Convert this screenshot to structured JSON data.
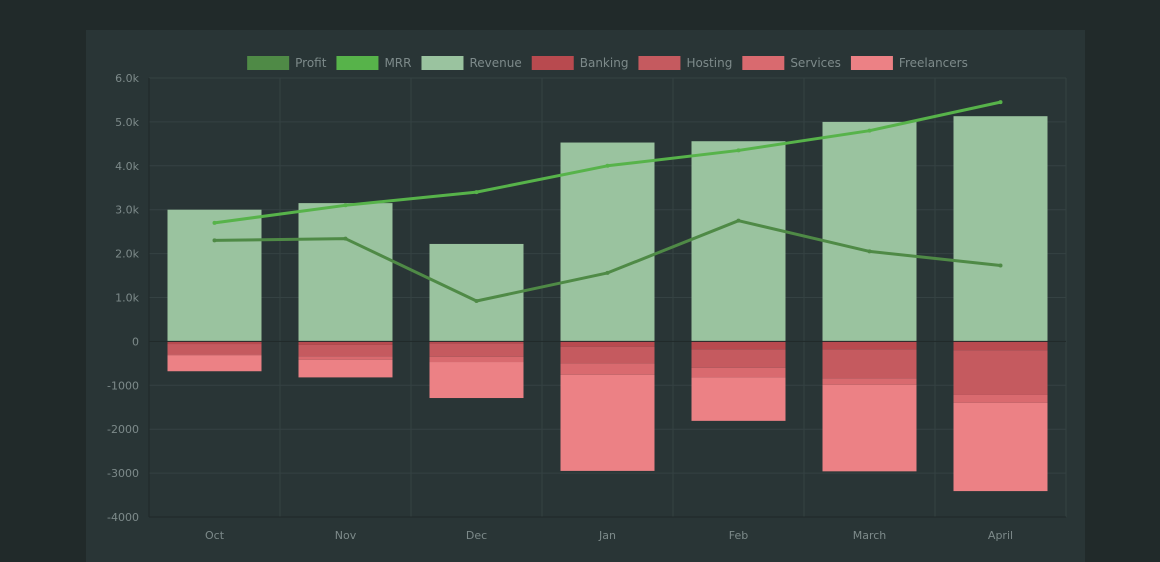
{
  "chart_data": {
    "type": "bar",
    "categories": [
      "Oct",
      "Nov",
      "Dec",
      "Jan",
      "Feb",
      "March",
      "April"
    ],
    "series": [
      {
        "name": "Profit",
        "kind": "line",
        "color": "#4f8a46",
        "values": [
          2300,
          2340,
          920,
          1560,
          2750,
          2050,
          1730
        ]
      },
      {
        "name": "MRR",
        "kind": "line",
        "color": "#57b34a",
        "values": [
          2700,
          3100,
          3400,
          4000,
          4350,
          4800,
          5450
        ]
      },
      {
        "name": "Revenue",
        "kind": "bar",
        "color": "#9ac39f",
        "values": [
          3000,
          3150,
          2220,
          4530,
          4560,
          5000,
          5130
        ]
      },
      {
        "name": "Banking",
        "kind": "bar",
        "color": "#b84a4f",
        "values": [
          -60,
          -80,
          -50,
          -120,
          -180,
          -180,
          -200
        ]
      },
      {
        "name": "Hosting",
        "kind": "bar",
        "color": "#c55a5f",
        "values": [
          -240,
          -260,
          -300,
          -380,
          -420,
          -660,
          -1020
        ]
      },
      {
        "name": "Services",
        "kind": "bar",
        "color": "#d96a6f",
        "values": [
          -20,
          -80,
          -120,
          -260,
          -220,
          -150,
          -180
        ]
      },
      {
        "name": "Freelancers",
        "kind": "bar",
        "color": "#ec8185",
        "values": [
          -360,
          -400,
          -820,
          -2190,
          -990,
          -1970,
          -2010
        ]
      }
    ],
    "yticks": [
      "6.0k",
      "5.0k",
      "4.0k",
      "3.0k",
      "2.0k",
      "1.0k",
      "0",
      "-1000",
      "-2000",
      "-3000",
      "-4000"
    ],
    "ylim": [
      -4000,
      6000
    ],
    "grid": true,
    "legend": "top-center",
    "colors": {
      "background": "#212a2a",
      "panel": "#293536",
      "grid": "#354243",
      "text": "#7d8a8a"
    }
  }
}
